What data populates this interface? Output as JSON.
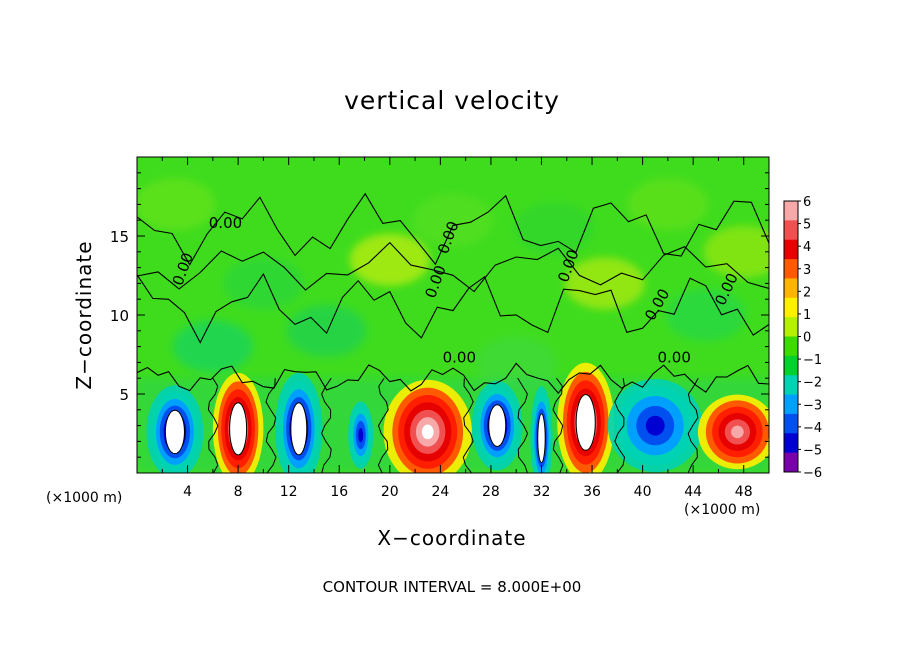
{
  "chart_data": {
    "type": "heatmap",
    "title": "vertical velocity",
    "xlabel": "X−coordinate",
    "ylabel": "Z−coordinate",
    "x_unit": "(×1000 m)",
    "xlim": [
      0,
      50
    ],
    "ylim": [
      0,
      20
    ],
    "x_ticks": [
      "4",
      "8",
      "12",
      "16",
      "20",
      "24",
      "28",
      "32",
      "36",
      "40",
      "44",
      "48"
    ],
    "y_ticks": [
      "5",
      "10",
      "15"
    ],
    "colorbar": {
      "range": [
        -6,
        6
      ],
      "tick_labels": [
        "6",
        "5",
        "4",
        "3",
        "2",
        "1",
        "0",
        "−1",
        "−2",
        "−3",
        "−4",
        "−5",
        "−6"
      ],
      "colors": [
        "#f7a8a8",
        "#f05050",
        "#e60000",
        "#ff5a00",
        "#ffb400",
        "#fff000",
        "#b4f000",
        "#3cdc00",
        "#00d22d",
        "#00d2b4",
        "#00a0ff",
        "#0050f0",
        "#0000d2",
        "#7800aa"
      ]
    },
    "contour_labels": [
      "0.00",
      "0.00",
      "0.00",
      "0.00",
      "0.00",
      "0.00",
      "0.00",
      "0.00",
      "0.00"
    ],
    "cells": [
      {
        "x": 3,
        "z": 2.6,
        "w": -7,
        "rx": 1.8,
        "rz": 2.5
      },
      {
        "x": 8,
        "z": 2.8,
        "w": 7,
        "rx": 1.6,
        "rz": 3.0
      },
      {
        "x": 12.8,
        "z": 2.8,
        "w": -7,
        "rx": 1.5,
        "rz": 3.0
      },
      {
        "x": 17.7,
        "z": 2.4,
        "w": -3.5,
        "rx": 0.8,
        "rz": 1.8
      },
      {
        "x": 23,
        "z": 2.6,
        "w": 5.5,
        "rx": 2.8,
        "rz": 2.8
      },
      {
        "x": 28.5,
        "z": 3.0,
        "w": -6,
        "rx": 1.6,
        "rz": 2.4
      },
      {
        "x": 32,
        "z": 2.2,
        "w": -6.5,
        "rx": 0.7,
        "rz": 2.8
      },
      {
        "x": 35.5,
        "z": 3.2,
        "w": 7,
        "rx": 1.8,
        "rz": 3.2
      },
      {
        "x": 41,
        "z": 3.0,
        "w": -4,
        "rx": 3.0,
        "rz": 2.5
      },
      {
        "x": 47.5,
        "z": 2.6,
        "w": 5,
        "rx": 2.5,
        "rz": 2.0
      }
    ]
  },
  "contour_interval_text": "CONTOUR INTERVAL = 8.000E+00"
}
